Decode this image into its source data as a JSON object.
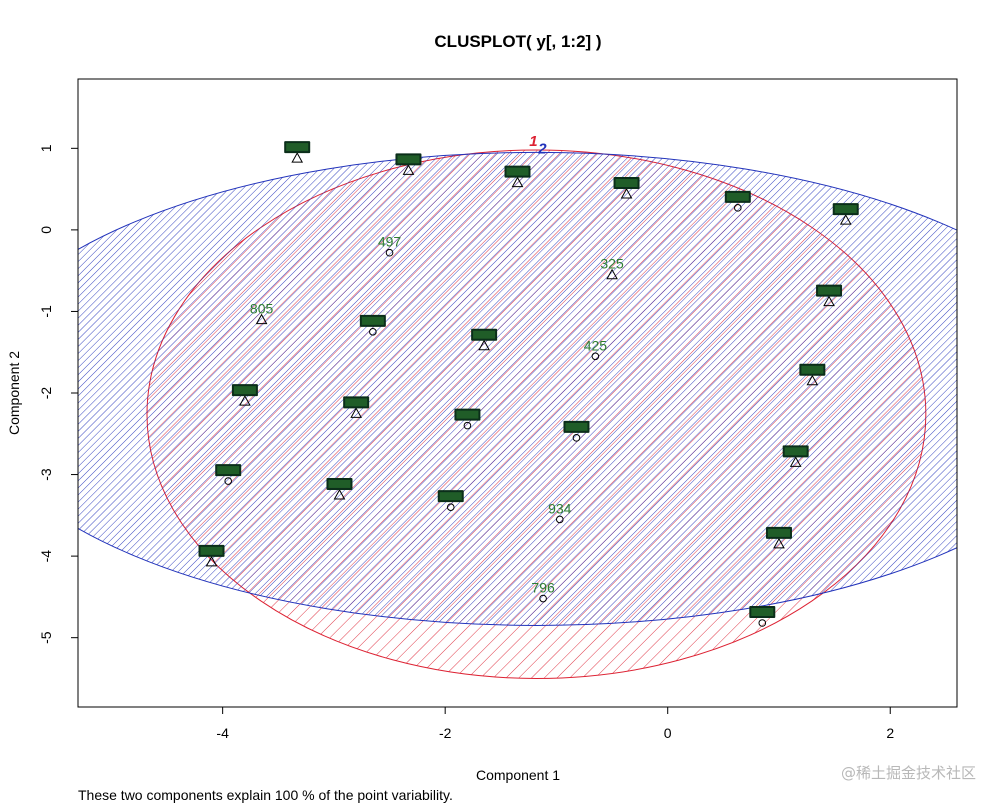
{
  "chart_data": {
    "type": "scatter",
    "title": "CLUSPLOT( y[, 1:2] )",
    "xlabel": "Component 1",
    "ylabel": "Component 2",
    "caption": "These two components explain 100 % of the point variability.",
    "xlim": [
      -5.3,
      2.6
    ],
    "ylim": [
      -5.85,
      1.85
    ],
    "xticks": [
      -4,
      -2,
      0,
      2
    ],
    "yticks": [
      -5,
      -4,
      -3,
      -2,
      -1,
      0,
      1
    ],
    "colors": {
      "cluster_1": "#dd2233",
      "cluster_2": "#2233bb",
      "label": "#2e7d32",
      "label_dark": "#0b2e1a",
      "point": "#000000"
    },
    "clusters": [
      {
        "id": "1",
        "center": [
          -1.18,
          -2.26
        ],
        "rx": 3.5,
        "ry": 3.24
      },
      {
        "id": "2",
        "center": [
          -1.18,
          -1.95
        ],
        "rx": 5.1,
        "ry": 2.9
      }
    ],
    "points": [
      {
        "x": -3.33,
        "y": 0.88,
        "label": "",
        "marker": "triangle",
        "stack": true
      },
      {
        "x": -2.33,
        "y": 0.73,
        "label": "",
        "marker": "triangle",
        "stack": true
      },
      {
        "x": -1.35,
        "y": 0.58,
        "label": "",
        "marker": "triangle",
        "stack": true
      },
      {
        "x": -0.37,
        "y": 0.44,
        "label": "",
        "marker": "triangle",
        "stack": true
      },
      {
        "x": 0.63,
        "y": 0.27,
        "label": "",
        "marker": "circle",
        "stack": true
      },
      {
        "x": 1.6,
        "y": 0.12,
        "label": "",
        "marker": "triangle",
        "stack": true
      },
      {
        "x": -2.5,
        "y": -0.28,
        "label": "497",
        "marker": "circle",
        "stack": false
      },
      {
        "x": -0.5,
        "y": -0.55,
        "label": "325",
        "marker": "triangle",
        "stack": false
      },
      {
        "x": 1.45,
        "y": -0.88,
        "label": "",
        "marker": "triangle",
        "stack": true
      },
      {
        "x": -3.65,
        "y": -1.1,
        "label": "805",
        "marker": "triangle",
        "stack": false
      },
      {
        "x": -2.65,
        "y": -1.25,
        "label": "",
        "marker": "circle",
        "stack": true
      },
      {
        "x": -1.65,
        "y": -1.42,
        "label": "",
        "marker": "triangle",
        "stack": true
      },
      {
        "x": -0.65,
        "y": -1.55,
        "label": "425",
        "marker": "circle",
        "stack": false
      },
      {
        "x": 1.3,
        "y": -1.85,
        "label": "",
        "marker": "triangle",
        "stack": true
      },
      {
        "x": -3.8,
        "y": -2.1,
        "label": "",
        "marker": "triangle",
        "stack": true
      },
      {
        "x": -2.8,
        "y": -2.25,
        "label": "",
        "marker": "triangle",
        "stack": true
      },
      {
        "x": -1.8,
        "y": -2.4,
        "label": "",
        "marker": "circle",
        "stack": true
      },
      {
        "x": -0.82,
        "y": -2.55,
        "label": "",
        "marker": "circle",
        "stack": true
      },
      {
        "x": 1.15,
        "y": -2.85,
        "label": "",
        "marker": "triangle",
        "stack": true
      },
      {
        "x": -3.95,
        "y": -3.08,
        "label": "",
        "marker": "circle",
        "stack": true
      },
      {
        "x": -2.95,
        "y": -3.25,
        "label": "",
        "marker": "triangle",
        "stack": true
      },
      {
        "x": -1.95,
        "y": -3.4,
        "label": "",
        "marker": "circle",
        "stack": true
      },
      {
        "x": -0.97,
        "y": -3.55,
        "label": "934",
        "marker": "circle",
        "stack": false
      },
      {
        "x": 1.0,
        "y": -3.85,
        "label": "",
        "marker": "triangle",
        "stack": true
      },
      {
        "x": -4.1,
        "y": -4.07,
        "label": "",
        "marker": "triangle",
        "stack": true
      },
      {
        "x": -1.12,
        "y": -4.52,
        "label": "796",
        "marker": "circle",
        "stack": false
      },
      {
        "x": 0.85,
        "y": -4.82,
        "label": "",
        "marker": "circle",
        "stack": true
      }
    ]
  },
  "watermark": "@稀土掘金技术社区"
}
